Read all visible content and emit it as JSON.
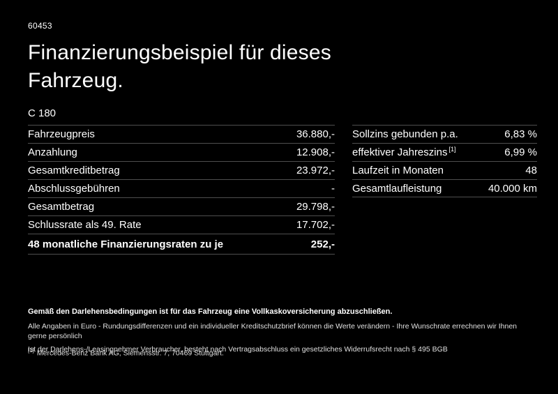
{
  "colors": {
    "background": "#000000",
    "text": "#ffffff",
    "divider": "#4f4f4f"
  },
  "page": {
    "id": "60453",
    "title_line1": "Finanzierungsbeispiel für dieses",
    "title_line2": "Fahrzeug.",
    "model": "C 180"
  },
  "left_table": {
    "rows": [
      {
        "label": "Fahrzeugpreis",
        "value": "36.880,-"
      },
      {
        "label": "Anzahlung",
        "value": "12.908,-"
      },
      {
        "label": "Gesamtkreditbetrag",
        "value": "23.972,-"
      },
      {
        "label": "Abschlussgebühren",
        "value": "-"
      },
      {
        "label": "Gesamtbetrag",
        "value": "29.798,-"
      },
      {
        "label": "Schlussrate als 49. Rate",
        "value": "17.702,-"
      },
      {
        "label": "48 monatliche Finanzierungsraten zu je",
        "value": "252,-",
        "bold": true
      }
    ]
  },
  "right_table": {
    "rows": [
      {
        "label": "Sollzins gebunden p.a.",
        "value": "6,83 %"
      },
      {
        "label": "effektiver Jahreszins",
        "label_sup": "[1]",
        "value": "6,99 %"
      },
      {
        "label": "Laufzeit in Monaten",
        "value": "48"
      },
      {
        "label": "Gesamtlaufleistung",
        "value": "40.000 km"
      }
    ]
  },
  "footer": {
    "insurance_note": "Gemäß den Darlehensbedingungen ist für das Fahrzeug eine Vollkaskoversicherung abzuschließen.",
    "disclaimer_1": "Alle Angaben in Euro - Rundungsdifferenzen und ein individueller Kreditschutzbrief können die Werte verändern - Ihre Wunschrate errechnen wir Ihnen gerne persönlich",
    "disclaimer_2": "Ist der Darlehens-/Leasingnehmer Verbraucher, besteht nach Vertragsabschluss ein gesetzliches Widerrufsrecht nach § 495 BGB",
    "footnote_marker": "[1]",
    "footnote_text": "Mercedes-Benz Bank AG, Siemensstr. 7, 70469 Stuttgart."
  }
}
